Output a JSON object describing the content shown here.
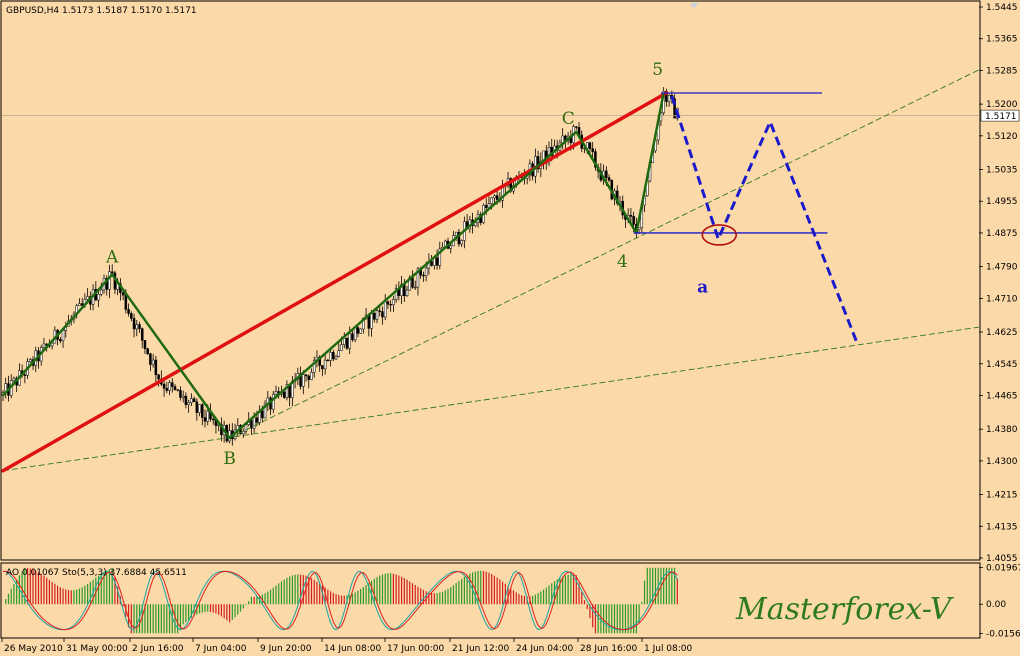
{
  "header": {
    "symbol": "GBPUSD,H4",
    "ohlc": "1.5173 1.5187 1.5170 1.5171"
  },
  "colors": {
    "background": "#fcd9a8",
    "bull_candle": "#ffffff",
    "bear_candle": "#000000",
    "trend_red": "#e01010",
    "wave_green": "#1f6a10",
    "dash_green": "#2e7a1e",
    "projection_blue": "#1a1acc",
    "ellipse": "#b01010",
    "ao_up": "#2a9a2a",
    "ao_down": "#d02020",
    "stoch_main": "#1aa7a7",
    "stoch_signal": "#e02020"
  },
  "chart_data": [
    {
      "type": "candlestick",
      "title": "GBPUSD,H4",
      "y_axis_side": "right",
      "ylim": [
        1.4055,
        1.5445
      ],
      "y_ticks": [
        "1.5445",
        "1.5365",
        "1.5285",
        "1.5200",
        "1.5120",
        "1.5035",
        "1.4955",
        "1.4875",
        "1.4790",
        "1.4710",
        "1.4625",
        "1.4545",
        "1.4465",
        "1.4380",
        "1.4300",
        "1.4215",
        "1.4135",
        "1.4055"
      ],
      "current_price": "1.5171",
      "x_ticks": [
        "26 May 2010",
        "31 May 00:00",
        "2 Jun 16:00",
        "7 Jun 04:00",
        "9 Jun 20:00",
        "14 Jun 08:00",
        "17 Jun 00:00",
        "21 Jun 12:00",
        "24 Jun 04:00",
        "28 Jun 16:00",
        "1 Jul 08:00"
      ],
      "bars_count": 240,
      "wave_points": [
        {
          "label": "A",
          "bar": 40,
          "price": 1.477
        },
        {
          "label": "B",
          "bar": 83,
          "price": 1.4358
        },
        {
          "label": "C",
          "bar": 210,
          "price": 1.513
        },
        {
          "label": "4",
          "bar": 232,
          "price": 1.4875
        },
        {
          "label": "5",
          "bar": 242,
          "price": 1.5228
        }
      ],
      "price_path": [
        {
          "bar": 0,
          "price": 1.4465
        },
        {
          "bar": 40,
          "price": 1.477
        },
        {
          "bar": 58,
          "price": 1.45
        },
        {
          "bar": 83,
          "price": 1.4358
        },
        {
          "bar": 110,
          "price": 1.451
        },
        {
          "bar": 145,
          "price": 1.472
        },
        {
          "bar": 185,
          "price": 1.499
        },
        {
          "bar": 210,
          "price": 1.513
        },
        {
          "bar": 232,
          "price": 1.4875
        },
        {
          "bar": 242,
          "price": 1.5228
        },
        {
          "bar": 247,
          "price": 1.5171
        }
      ],
      "wave_labels_extra": [
        {
          "label": "a",
          "bar": 257,
          "price": 1.4735
        }
      ],
      "red_trendline": [
        {
          "bar": 0,
          "price": 1.4275
        },
        {
          "bar": 243,
          "price": 1.5228
        }
      ],
      "dashed_channel_upper": [
        {
          "bar": 83,
          "price": 1.4358
        },
        {
          "bar": 360,
          "price": 1.5295
        }
      ],
      "dashed_channel_lower": [
        {
          "bar": 0,
          "price": 1.4275
        },
        {
          "bar": 360,
          "price": 1.464
        }
      ],
      "horizontal_levels": [
        {
          "price": 1.5228,
          "from_bar": 241,
          "to_bar": 300
        },
        {
          "price": 1.4875,
          "from_bar": 231,
          "to_bar": 302
        }
      ],
      "projection": [
        {
          "bar": 245,
          "price": 1.522
        },
        {
          "bar": 262,
          "price": 1.486
        },
        {
          "bar": 281,
          "price": 1.5155
        },
        {
          "bar": 313,
          "price": 1.4595
        }
      ],
      "ellipse_target": {
        "bar": 262,
        "price": 1.487
      }
    },
    {
      "type": "line",
      "title": "AO 0.01067 Sto(5,3,3) 37.6884 45.6511",
      "y_ticks": [
        "0.01967",
        "0.00",
        "-0.0156"
      ],
      "ylim": [
        -0.0175,
        0.0215
      ],
      "series": [
        {
          "name": "AO",
          "kind": "histogram"
        },
        {
          "name": "Sto(5,3,3) main"
        },
        {
          "name": "Sto(5,3,3) signal"
        }
      ]
    }
  ],
  "watermark": "Masterforex-V"
}
